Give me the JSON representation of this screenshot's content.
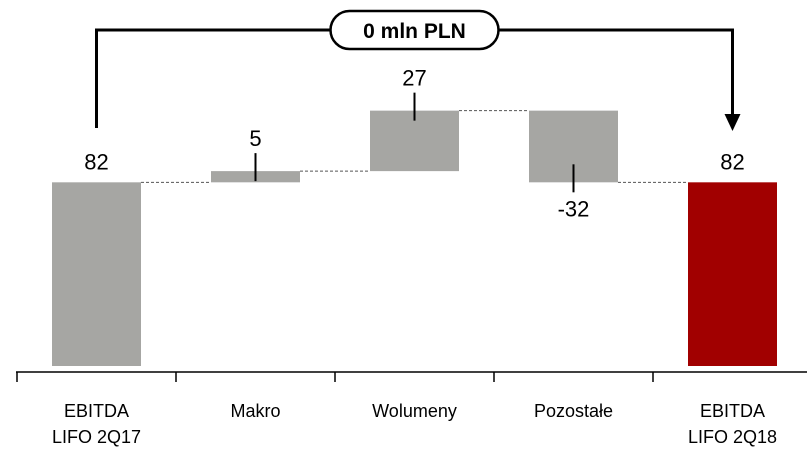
{
  "chart_data": {
    "type": "waterfall",
    "categories": [
      "EBITDA\nLIFO 2Q17",
      "Makro",
      "Wolumeny",
      "Pozostałe",
      "EBITDA\nLIFO 2Q18"
    ],
    "steps": [
      {
        "kind": "total",
        "value": 82,
        "label": "82"
      },
      {
        "kind": "delta",
        "value": 5,
        "label": "5"
      },
      {
        "kind": "delta",
        "value": 27,
        "label": "27"
      },
      {
        "kind": "delta",
        "value": -32,
        "label": "-32"
      },
      {
        "kind": "total",
        "value": 82,
        "label": "82"
      }
    ],
    "annotation": "0 mln PLN",
    "ylim": [
      0,
      120
    ],
    "colors": {
      "total_start": "#a6a6a3",
      "delta": "#a6a6a3",
      "total_end": "#a10000"
    },
    "grid": false,
    "legend": "none"
  }
}
